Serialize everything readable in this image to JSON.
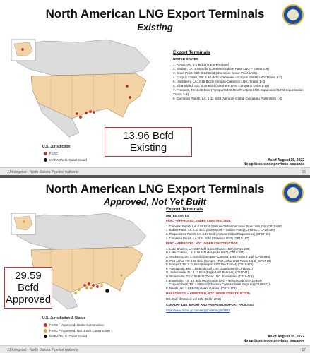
{
  "slide1": {
    "title": "North American LNG Export Terminals",
    "subtitle": "Existing",
    "legend": {
      "title": "U.S. Jurisdiction",
      "items": [
        {
          "label": "FERC",
          "color": "#c0392b"
        },
        {
          "label": "MARAD/U.S. Coast Guard",
          "color": "#111111"
        }
      ]
    },
    "callout": "13.96 Bcfd Existing",
    "list_header": "Export Terminals",
    "region": "UNITED STATES",
    "items": [
      "1. Kenai, AK: 0.2 Bcfd (Trans-Foreland)",
      "2. Sabine, LA: 4.55 Bcfd (Cheniere/Sabine Pass LNG – Trains 1-6)",
      "3. Cove Point, MD: 0.82 Bcfd (Dominion–Cove Point LNG)",
      "4. Corpus Christi, TX: 2.40 Bcfd (Cheniere – Corpus Christi LNG Trains 1-3)",
      "5. Hackberry, LA: 2.15 Bcfd (Sempra-Cameron LNG, Trains 1-3)",
      "6. Elba Island, GA: 0.35 Bcfd (Southern LNG Company Units 1-10)",
      "7. Freeport, TX: 2.38 Bcfd (Freeport LNG Dev/Freeport LNG Expansion/FLNG Liquefaction Trains 1-3)",
      "8. Cameron Parish, LA: 1.11 Bcfd (Venture Global Calcasieu Pass Units 1-6)"
    ],
    "as_of": "As of August 16, 2022",
    "as_of_note": "No updates since previous issuance",
    "footer": "JJ Kringstad - North Dakota Pipeline Authority",
    "page": "16"
  },
  "slide2": {
    "title": "North American LNG Export Terminals",
    "subtitle": "Approved, Not Yet Built",
    "legend": {
      "title": "U.S. Jurisdiction & Status",
      "items": [
        {
          "label": "FERC – Approved, Under Construction",
          "color": "#c0392b"
        },
        {
          "label": "FERC – Approved, Not Under Construction",
          "color": "#e8a23a"
        },
        {
          "label": "MARAD/U.S. Coast Guard",
          "color": "#111111"
        }
      ]
    },
    "callout_line1": "29.59 Bcfd",
    "callout_line2": "Approved",
    "list_header": "Export Terminals",
    "region": "UNITED STATES",
    "section1": "FERC – APPROVED, UNDER CONSTRUCTION",
    "section1_items": [
      "1. Cameron Parish, LA: 0.55 Bcfd (Venture Global Calcasieu Pass Units 7-9) (CP15-550)",
      "2. Sabine Pass, TX: 2.57 Bcfd (ExxonMobil – Golden Pass) (CP14-517, CP20-459)",
      "3. Plaquemines Parish, LA: 3.40 Bcfd (Venture Global Plaquemines) (CP17-66)",
      "4. Calcasieu Parish, LA: 3.81 Bcfd (Driftwood LNG) (CP17-117)"
    ],
    "section2": "FERC – APPROVED, NOT UNDER CONSTRUCTION",
    "section2_items": [
      "A. Lake Charles, LA: 2.27 Bcfd (Lake Charles LNG) (CP14-120)",
      "B. Lake Charles, LA: 1.19 Bcfd (Magnolia LNG) (CP14-347)",
      "C. Hackberry, LA: 1.41 Bcfd (Sempra - Cameron LNG Trains 4 & 5) (CP15-560)",
      "D. Port Arthur, TX: 1.86 Bcfd (Sempra - Port Arthur LNG Trains 1 & 2) (CP17-20)",
      "E. Freeport, TX: 0.74 Bcfd (Freeport LNG Dev Train 4) (CP17-470)",
      "F. Pascagoula, MS: 1.50 Bcfd (Gulf LNG Liquefaction) (CP15-521)",
      "G. Jacksonville, FL: 0.13 Bcfd (Eagle LNG Partners) (CP17-41)",
      "H. Brownsville, TX: 0.55 Bcfd (Texas LNG Brownsville) (CP16-116)",
      "I. Brownsville, TX: 3.6 Bcfd (Rio Grande LNG – NextDecade) (CP16-454)",
      "J. Corpus Christi, TX: 1.58 Bcfd (Cheniere Corpus Christi Stage III) (CP18-512)",
      "K. Nikiski, AK: 2.63 Bcfd (Alaska Gasline) (CP17-178)"
    ],
    "section3": "MARAD/USCG – APPROVED, NOT UNDER CONSTRUCTION",
    "section3_items": [
      "MC. Gulf of Mexico: 1.8 Bcfd (Delfin LNG)"
    ],
    "canada_note": "CANADA - LNG IMPORT AND PROPOSED EXPORT FACILITIES",
    "canada_link": "https://www.nrcan.gc.ca/energy/natural-gas/5683",
    "as_of": "As of August 16, 2022",
    "as_of_note": "No updates since previous issuance",
    "footer": "JJ Kringstad - North Dakota Pipeline Authority",
    "page": "17"
  }
}
